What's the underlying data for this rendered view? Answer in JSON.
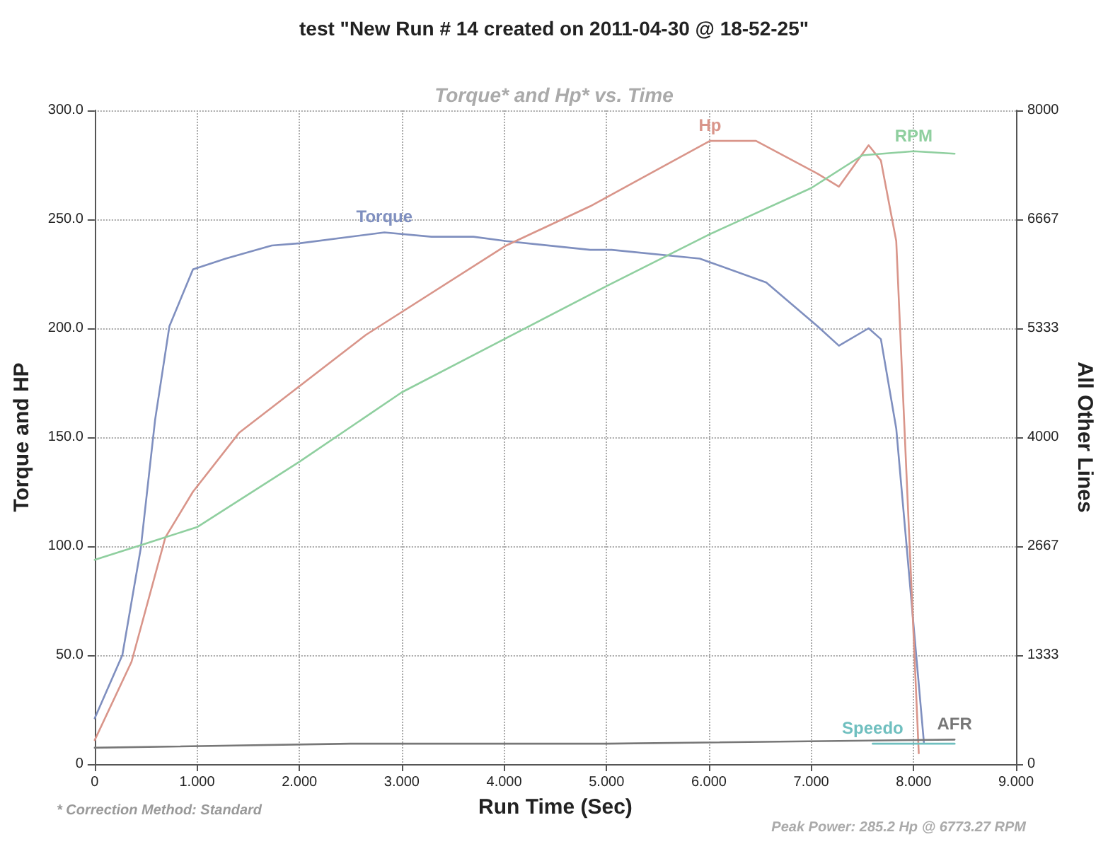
{
  "chart_data": {
    "type": "line",
    "title": "test \"New Run # 14 created on 2011-04-30 @ 18-52-25\"",
    "subtitle": "Torque* and Hp* vs. Time",
    "xlabel": "Run Time (Sec)",
    "ylabel": "Torque and HP",
    "y2label": "All Other Lines",
    "xlim": [
      0,
      9
    ],
    "xticks": [
      0,
      {
        "value": 1,
        "label": "1.000"
      },
      {
        "value": 2,
        "label": "2.000"
      },
      {
        "value": 3,
        "label": "3.000"
      },
      {
        "value": 4,
        "label": "4.000"
      },
      {
        "value": 5,
        "label": "5.000"
      },
      {
        "value": 6,
        "label": "6.000"
      },
      {
        "value": 7,
        "label": "7.000"
      },
      {
        "value": 8,
        "label": "8.000"
      },
      {
        "value": 9,
        "label": "9.000"
      }
    ],
    "ylim": [
      0,
      300
    ],
    "yticks": [
      0,
      {
        "value": 50,
        "label": "50.0"
      },
      {
        "value": 100,
        "label": "100.0"
      },
      {
        "value": 150,
        "label": "150.0"
      },
      {
        "value": 200,
        "label": "200.0"
      },
      {
        "value": 250,
        "label": "250.0"
      },
      {
        "value": 300,
        "label": "300.0"
      }
    ],
    "y2lim": [
      0,
      8000
    ],
    "y2ticks": [
      0,
      1333,
      2667,
      4000,
      5333,
      6667,
      8000
    ],
    "series": [
      {
        "name": "Torque",
        "color": "#7f8fbf",
        "x": [
          0,
          0.27,
          0.45,
          0.59,
          0.73,
          0.96,
          1.28,
          1.73,
          2.0,
          2.83,
          3.29,
          3.7,
          4.02,
          4.84,
          5.05,
          5.91,
          6.56,
          7.06,
          7.27,
          7.56,
          7.68,
          7.83,
          8.1
        ],
        "values": [
          21,
          50,
          99,
          158,
          201,
          227,
          232,
          238,
          239,
          244,
          242,
          242,
          240,
          236,
          236,
          232,
          221,
          201,
          192,
          200,
          195,
          154,
          10
        ]
      },
      {
        "name": "Hp",
        "color": "#d9958a",
        "x": [
          0,
          0.36,
          0.69,
          0.96,
          1.41,
          2.65,
          4.02,
          4.84,
          6.01,
          6.46,
          7.06,
          7.27,
          7.56,
          7.68,
          7.83,
          8.05
        ],
        "values": [
          11,
          47,
          104,
          125,
          152,
          197,
          238,
          256,
          286,
          286,
          271,
          265,
          284,
          277,
          240,
          5
        ]
      },
      {
        "name": "RPM",
        "color": "#8fcf9f",
        "axis": "y2",
        "x": [
          0,
          0.5,
          1.0,
          2.0,
          3.0,
          4.0,
          5.0,
          6.0,
          7.0,
          7.5,
          8.0,
          8.4
        ],
        "values": [
          2500,
          2700,
          2900,
          3700,
          4550,
          5200,
          5850,
          6480,
          7050,
          7450,
          7500,
          7470
        ]
      },
      {
        "name": "AFR",
        "color": "#777777",
        "axis": "y2",
        "x": [
          0,
          2.5,
          5.0,
          8.4
        ],
        "values": [
          200,
          250,
          250,
          300
        ]
      },
      {
        "name": "Speedo",
        "color": "#6fbfbf",
        "axis": "y2",
        "x": [
          7.6,
          8.4
        ],
        "values": [
          250,
          250
        ]
      }
    ],
    "grid": true,
    "legend": false,
    "marker": "none",
    "line_style": "solid",
    "annotations": [
      "* Correction Method: Standard",
      "Peak Power: 285.2 Hp @ 6773.27 RPM"
    ]
  }
}
